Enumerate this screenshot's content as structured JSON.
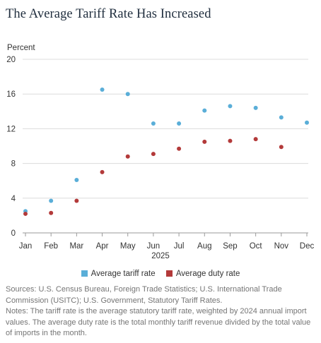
{
  "header": {
    "title": "The Average Tariff Rate Has Increased"
  },
  "colors": {
    "tariff": "#5aaed8",
    "duty": "#b33a3a",
    "grid": "#dcdcdc",
    "axis": "#9a9a9a"
  },
  "chart_data": {
    "type": "scatter",
    "title": "The Average Tariff Rate Has Increased",
    "ylabel": "Percent",
    "xlabel": "2025",
    "ylim": [
      0,
      20
    ],
    "yticks": [
      "0",
      "4",
      "8",
      "12",
      "16",
      "20"
    ],
    "categories": [
      "Jan",
      "Feb",
      "Mar",
      "Apr",
      "May",
      "Jun",
      "Jul",
      "Aug",
      "Sep",
      "Oct",
      "Nov",
      "Dec"
    ],
    "grid": true,
    "legend_position": "bottom",
    "series": [
      {
        "name": "Average tariff rate",
        "color": "#5aaed8",
        "values": [
          2.5,
          3.7,
          6.1,
          16.5,
          16.0,
          12.6,
          12.6,
          14.1,
          14.6,
          14.4,
          13.3,
          12.7
        ]
      },
      {
        "name": "Average duty rate",
        "color": "#b33a3a",
        "values": [
          2.2,
          2.3,
          3.7,
          7.0,
          8.8,
          9.1,
          9.7,
          10.5,
          10.6,
          10.8,
          9.9,
          null
        ]
      }
    ]
  },
  "footer": {
    "sources": "Sources: U.S. Census Bureau, Foreign Trade Statistics; U.S. International Trade Commission (USITC); U.S. Government, Statutory Tariff Rates.",
    "notes": "Notes: The tariff rate is the average statutory tariff rate, weighted by 2024 annual import values. The average duty rate is the total monthly tariff revenue divided by the total value of imports in the month."
  }
}
